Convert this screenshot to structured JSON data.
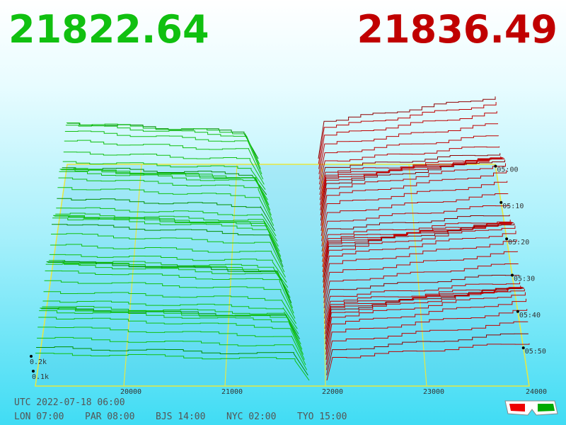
{
  "header": {
    "bid": "21822.64",
    "ask": "21836.49"
  },
  "axis": {
    "price_labels": [
      "20000",
      "21000",
      "22000",
      "23000",
      "24000"
    ],
    "depth_labels": [
      "0.2k",
      "0.1k"
    ],
    "time_labels": [
      "05:00",
      "05:10",
      "05:20",
      "05:30",
      "05:40",
      "05:50"
    ]
  },
  "footer": {
    "utc": "UTC 2022-07-18 06:00",
    "zones": [
      "LON 07:00",
      "PAR 08:00",
      "BJS 14:00",
      "NYC 02:00",
      "TYO 15:00"
    ]
  }
}
